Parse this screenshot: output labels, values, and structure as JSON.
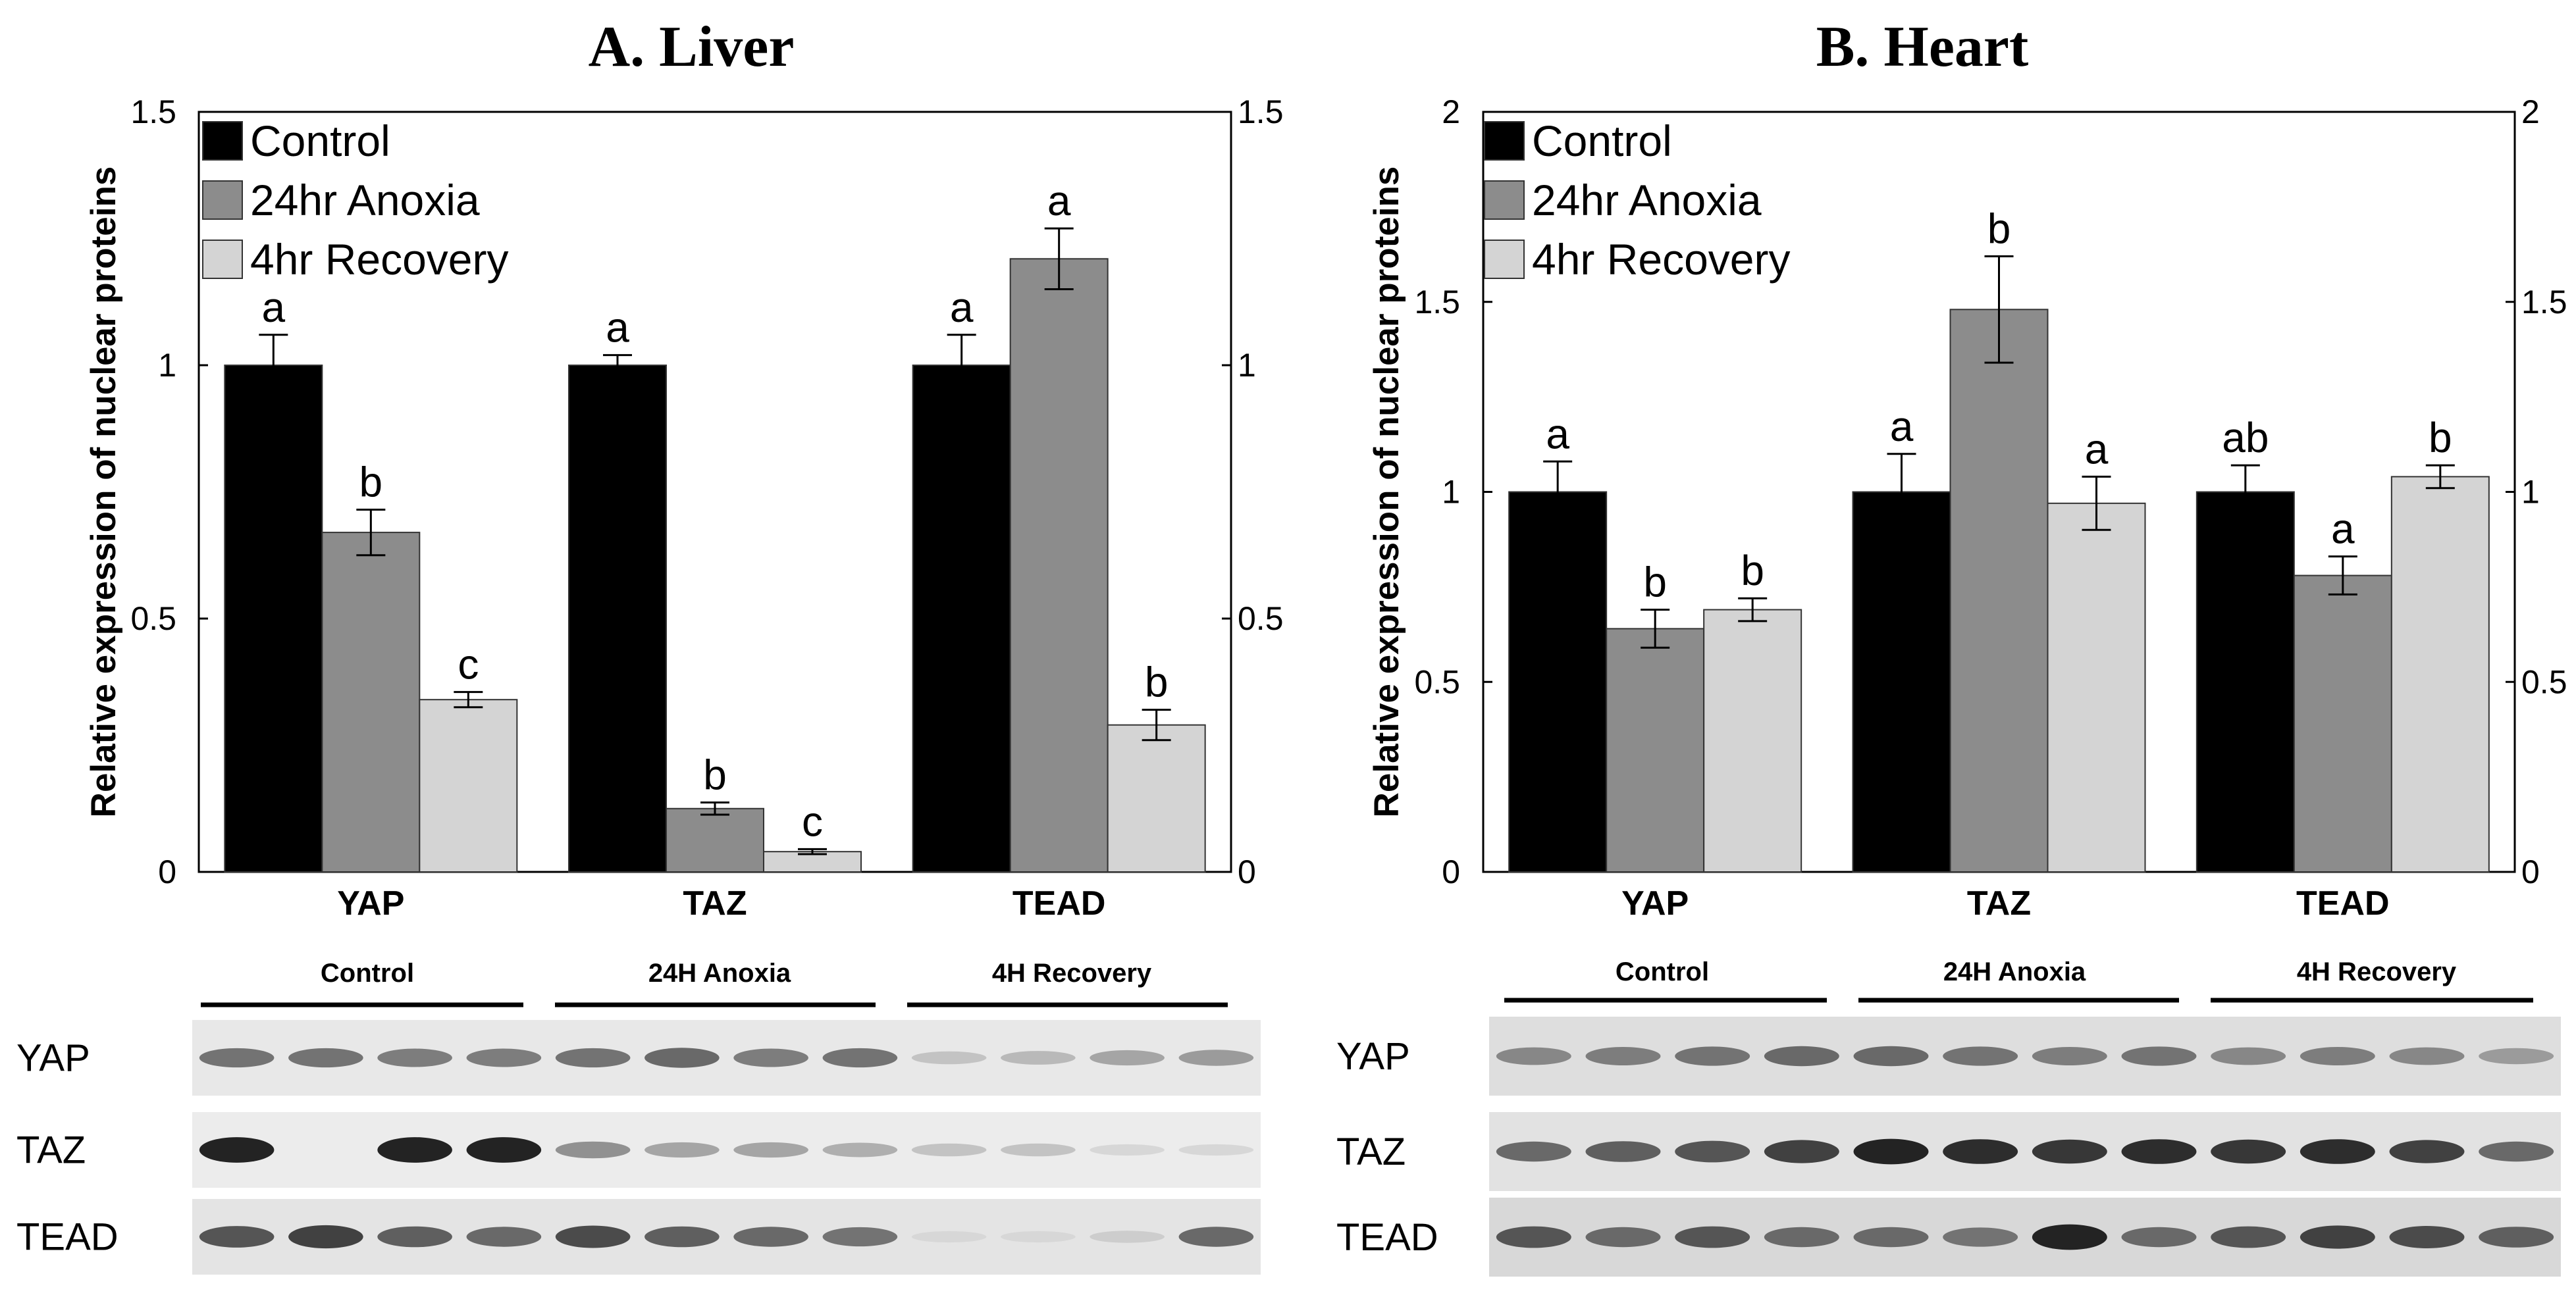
{
  "chart_data": [
    {
      "type": "bar",
      "title": "A. Liver",
      "ylabel": "Relative expression of nuclear proteins",
      "xlabel": "",
      "ylim": [
        0,
        1.5
      ],
      "yticks": [
        "0",
        "0.5",
        "1",
        "1.5"
      ],
      "categories": [
        "YAP",
        "TAZ",
        "TEAD"
      ],
      "series": [
        {
          "name": "Control",
          "color": "#000000",
          "values": [
            1.0,
            1.0,
            1.0
          ],
          "errors": [
            0.06,
            0.02,
            0.06
          ],
          "labels": [
            "a",
            "a",
            "a"
          ]
        },
        {
          "name": "24hr Anoxia",
          "color": "#8c8c8c",
          "values": [
            0.67,
            0.125,
            1.21
          ],
          "errors": [
            0.045,
            0.012,
            0.06
          ],
          "labels": [
            "b",
            "b",
            "a"
          ]
        },
        {
          "name": "4hr Recovery",
          "color": "#d4d4d4",
          "values": [
            0.34,
            0.04,
            0.29
          ],
          "errors": [
            0.015,
            0.005,
            0.03
          ],
          "labels": [
            "c",
            "c",
            "b"
          ]
        }
      ],
      "legend": "top-left",
      "grid": false
    },
    {
      "type": "bar",
      "title": "B. Heart",
      "ylabel": "Relative expression of nuclear proteins",
      "xlabel": "",
      "ylim": [
        0,
        2
      ],
      "yticks": [
        "0",
        "0.5",
        "1",
        "1.5",
        "2"
      ],
      "categories": [
        "YAP",
        "TAZ",
        "TEAD"
      ],
      "series": [
        {
          "name": "Control",
          "color": "#000000",
          "values": [
            1.0,
            1.0,
            1.0
          ],
          "errors": [
            0.08,
            0.1,
            0.07
          ],
          "labels": [
            "a",
            "a",
            "ab"
          ]
        },
        {
          "name": "24hr Anoxia",
          "color": "#8c8c8c",
          "values": [
            0.64,
            1.48,
            0.78
          ],
          "errors": [
            0.05,
            0.14,
            0.05
          ],
          "labels": [
            "b",
            "b",
            "a"
          ]
        },
        {
          "name": "4hr Recovery",
          "color": "#d4d4d4",
          "values": [
            0.69,
            0.97,
            1.04
          ],
          "errors": [
            0.03,
            0.07,
            0.03
          ],
          "labels": [
            "b",
            "a",
            "b"
          ]
        }
      ],
      "legend": "top-left",
      "grid": false
    }
  ],
  "blots": [
    {
      "groups": [
        "Control",
        "24H Anoxia",
        "4H Recovery"
      ],
      "rows": [
        {
          "label": "YAP",
          "bg": "#e8e8e8",
          "lanes": [
            0.55,
            0.55,
            0.5,
            0.5,
            0.55,
            0.6,
            0.5,
            0.55,
            0.15,
            0.2,
            0.3,
            0.35
          ]
        },
        {
          "label": "TAZ",
          "bg": "#ececec",
          "lanes": [
            0.95,
            0.0,
            0.95,
            0.95,
            0.4,
            0.3,
            0.3,
            0.25,
            0.15,
            0.15,
            0.05,
            0.05
          ]
        },
        {
          "label": "TEAD",
          "bg": "#e4e4e4",
          "lanes": [
            0.7,
            0.8,
            0.65,
            0.6,
            0.75,
            0.65,
            0.6,
            0.55,
            0.05,
            0.05,
            0.1,
            0.6
          ]
        }
      ]
    },
    {
      "groups": [
        "Control",
        "24H Anoxia",
        "4H Recovery"
      ],
      "rows": [
        {
          "label": "YAP",
          "bg": "#dedede",
          "lanes": [
            0.45,
            0.5,
            0.55,
            0.6,
            0.6,
            0.55,
            0.5,
            0.55,
            0.45,
            0.5,
            0.45,
            0.35
          ]
        },
        {
          "label": "TAZ",
          "bg": "#e2e2e2",
          "lanes": [
            0.6,
            0.65,
            0.7,
            0.8,
            0.95,
            0.9,
            0.85,
            0.9,
            0.85,
            0.9,
            0.8,
            0.6
          ]
        },
        {
          "label": "TEAD",
          "bg": "#d8d8d8",
          "lanes": [
            0.7,
            0.6,
            0.7,
            0.6,
            0.6,
            0.55,
            0.95,
            0.6,
            0.7,
            0.8,
            0.75,
            0.65
          ]
        }
      ]
    }
  ]
}
